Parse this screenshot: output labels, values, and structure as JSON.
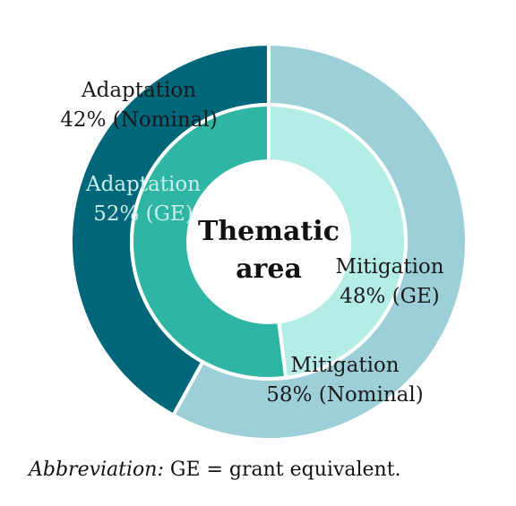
{
  "chart_data": {
    "type": "pie",
    "variant": "nested-donut",
    "center_label": [
      "Thematic",
      "area"
    ],
    "rings": [
      {
        "ring": "outer",
        "slices": [
          {
            "category": "Adaptation",
            "value": 42,
            "label_lines": [
              "Adaptation",
              "42% (Nominal)"
            ],
            "color": "#00677a",
            "label_color": "#1a1a1a"
          },
          {
            "category": "Mitigation",
            "value": 58,
            "label_lines": [
              "Mitigation",
              "58% (Nominal)"
            ],
            "color": "#9dcfd9",
            "label_color": "#1a1a1a"
          }
        ]
      },
      {
        "ring": "inner",
        "slices": [
          {
            "category": "Adaptation",
            "value": 52,
            "label_lines": [
              "Adaptation",
              "52% (GE)"
            ],
            "color": "#2eb5a3",
            "label_color": "#c9efea"
          },
          {
            "category": "Mitigation",
            "value": 48,
            "label_lines": [
              "Mitigation",
              "48% (GE)"
            ],
            "color": "#b4ede5",
            "label_color": "#1a1a1a"
          }
        ]
      }
    ]
  },
  "footnote": {
    "label": "Abbreviation:",
    "text": " GE = grant equivalent."
  }
}
